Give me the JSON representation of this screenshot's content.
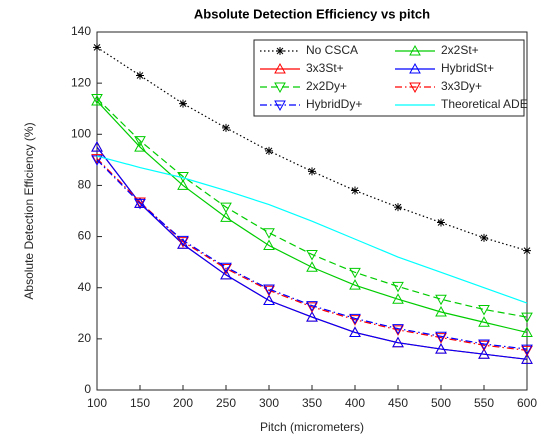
{
  "chart_data": {
    "type": "line",
    "title": "Absolute Detection Efficiency vs pitch",
    "xlabel": "Pitch (micrometers)",
    "ylabel": "Absolute Detection Efficiency (%)",
    "x": [
      100,
      150,
      200,
      250,
      300,
      350,
      400,
      450,
      500,
      550,
      600
    ],
    "xlim": [
      100,
      600
    ],
    "xticks": [
      100,
      150,
      200,
      250,
      300,
      350,
      400,
      450,
      500,
      550,
      600
    ],
    "ylim": [
      0,
      140
    ],
    "yticks": [
      0,
      20,
      40,
      60,
      80,
      100,
      120,
      140
    ],
    "grid": false,
    "legend_position": "top-right",
    "legend_columns": 2,
    "series": [
      {
        "name": "No CSCA",
        "color": "#000000",
        "line_style": "dotted",
        "marker": "asterisk",
        "values": [
          134,
          123,
          112,
          102.5,
          93.5,
          85.5,
          78,
          71.5,
          65.5,
          59.5,
          54.5
        ]
      },
      {
        "name": "2x2St+",
        "color": "#00cc00",
        "line_style": "solid",
        "marker": "triangle-up",
        "values": [
          113,
          95,
          80,
          67.5,
          56.5,
          48,
          41,
          35.5,
          30.5,
          26.5,
          22.5
        ]
      },
      {
        "name": "3x3St+",
        "color": "#ff0000",
        "line_style": "solid",
        "marker": "triangle-up",
        "values": [
          95,
          73,
          57,
          45,
          35,
          28.5,
          22.5,
          18.5,
          16,
          14,
          12
        ]
      },
      {
        "name": "HybridSt+",
        "color": "#0000ff",
        "line_style": "solid",
        "marker": "triangle-up",
        "values": [
          95,
          73,
          57,
          45,
          35,
          28.5,
          22.5,
          18.5,
          16,
          14,
          12
        ]
      },
      {
        "name": "2x2Dy+",
        "color": "#00cc00",
        "line_style": "dashed",
        "marker": "triangle-down",
        "values": [
          114,
          97.5,
          83.5,
          71.5,
          61.5,
          53,
          46,
          40.5,
          35.5,
          31.5,
          28.5
        ]
      },
      {
        "name": "3x3Dy+",
        "color": "#ff0000",
        "line_style": "dashdot",
        "marker": "triangle-down",
        "values": [
          90.5,
          73.5,
          58,
          47.5,
          39,
          32.5,
          27.5,
          23.5,
          20.5,
          17.5,
          15.5
        ]
      },
      {
        "name": "HybridDy+",
        "color": "#0000ff",
        "line_style": "dashdot",
        "marker": "triangle-down",
        "values": [
          90,
          73,
          58.5,
          48,
          39.5,
          33,
          28,
          24,
          21,
          18,
          16
        ]
      },
      {
        "name": "Theoretical ADE",
        "color": "#00ffff",
        "line_style": "solid",
        "values": [
          91.5,
          87,
          83,
          78,
          72.5,
          66,
          59,
          52,
          46,
          40,
          34
        ]
      }
    ]
  }
}
